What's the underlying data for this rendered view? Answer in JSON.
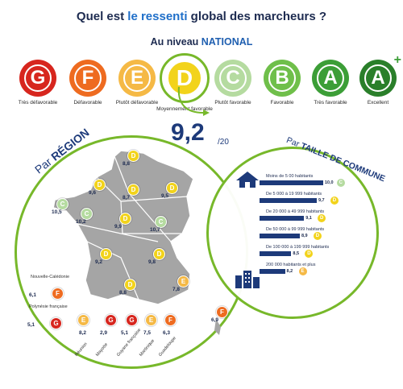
{
  "title": {
    "part1": "Quel est ",
    "highlight": "le ressenti",
    "part2": " global des marcheurs ?"
  },
  "subtitle": {
    "part1": "Au niveau ",
    "highlight": "NATIONAL"
  },
  "scale": [
    {
      "letter": "G",
      "label": "Très défavorable",
      "color": "#d7261e"
    },
    {
      "letter": "F",
      "label": "Défavorable",
      "color": "#ee6b20"
    },
    {
      "letter": "E",
      "label": "Plutôt défavorable",
      "color": "#f5b945"
    },
    {
      "letter": "D",
      "label": "Moyennement favorable",
      "color": "#f2d31b"
    },
    {
      "letter": "C",
      "label": "Plutôt favorable",
      "color": "#b5dba0"
    },
    {
      "letter": "B",
      "label": "Favorable",
      "color": "#6fbf4a"
    },
    {
      "letter": "A",
      "label": "Très favorable",
      "color": "#3c9e37"
    },
    {
      "letter": "A",
      "label": "Excellent",
      "color": "#2a7f2a",
      "plus": "+"
    }
  ],
  "national_score": {
    "value": "9,2",
    "denominator": "/20"
  },
  "region": {
    "heading_prefix": "Par ",
    "heading": "RÉGION",
    "values": [
      {
        "value": "8,8",
        "letter": "D",
        "color": "#f2d31b"
      },
      {
        "value": "9,6",
        "letter": "D",
        "color": "#f2d31b"
      },
      {
        "value": "8,7",
        "letter": "D",
        "color": "#f2d31b"
      },
      {
        "value": "9,5",
        "letter": "D",
        "color": "#f2d31b"
      },
      {
        "value": "10,5",
        "letter": "C",
        "color": "#b5dba0"
      },
      {
        "value": "10,2",
        "letter": "C",
        "color": "#b5dba0"
      },
      {
        "value": "9,9",
        "letter": "D",
        "color": "#f2d31b"
      },
      {
        "value": "10,7",
        "letter": "C",
        "color": "#b5dba0"
      },
      {
        "value": "9,2",
        "letter": "D",
        "color": "#f2d31b"
      },
      {
        "value": "9,8",
        "letter": "D",
        "color": "#f2d31b"
      },
      {
        "value": "8,8",
        "letter": "D",
        "color": "#f2d31b"
      },
      {
        "value": "7,8",
        "letter": "E",
        "color": "#f5b945"
      },
      {
        "value": "6,9",
        "letter": "F",
        "color": "#ee6b20"
      }
    ],
    "territories": [
      {
        "name": "Nouvelle-Calédonie",
        "value": "6,1",
        "letter": "F",
        "color": "#ee6b20"
      },
      {
        "name": "Polynésie française",
        "value": "5,1",
        "letter": "G",
        "color": "#d7261e"
      },
      {
        "name": "Réunion",
        "value": "8,2",
        "letter": "E",
        "color": "#f5b945"
      },
      {
        "name": "Mayotte",
        "value": "2,9",
        "letter": "G",
        "color": "#d7261e"
      },
      {
        "name": "Guyane française",
        "value": "5,1",
        "letter": "G",
        "color": "#d7261e"
      },
      {
        "name": "Martinique",
        "value": "7,5",
        "letter": "E",
        "color": "#f5b945"
      },
      {
        "name": "Guadeloupe",
        "value": "6,3",
        "letter": "F",
        "color": "#ee6b20"
      }
    ]
  },
  "commune": {
    "heading_prefix": "Par ",
    "heading": "TAILLE DE COMMUNE",
    "rows": [
      {
        "label": "Moins de 5 00 habitants",
        "value": "10,0",
        "letter": "C",
        "color": "#b5dba0",
        "score": 10.0
      },
      {
        "label": "De 5 000 à 19 999 habitants",
        "value": "9,7",
        "letter": "D",
        "color": "#f2d31b",
        "score": 9.7
      },
      {
        "label": "De 20 000 à 49 999 habitants",
        "value": "9,1",
        "letter": "D",
        "color": "#f2d31b",
        "score": 9.1
      },
      {
        "label": "De 50 000 à 99 999 habitants",
        "value": "8,9",
        "letter": "D",
        "color": "#f2d31b",
        "score": 8.9
      },
      {
        "label": "De 100 000 à 199 999 habitants",
        "value": "8,5",
        "letter": "D",
        "color": "#f2d31b",
        "score": 8.5
      },
      {
        "label": "200 000 habitants et plus",
        "value": "8,2",
        "letter": "E",
        "color": "#f5b945",
        "score": 8.2
      }
    ]
  },
  "icons": {
    "commune_top": "house-icon",
    "commune_bottom": "city-buildings-icon",
    "arrow": "arrow-down-icon"
  }
}
